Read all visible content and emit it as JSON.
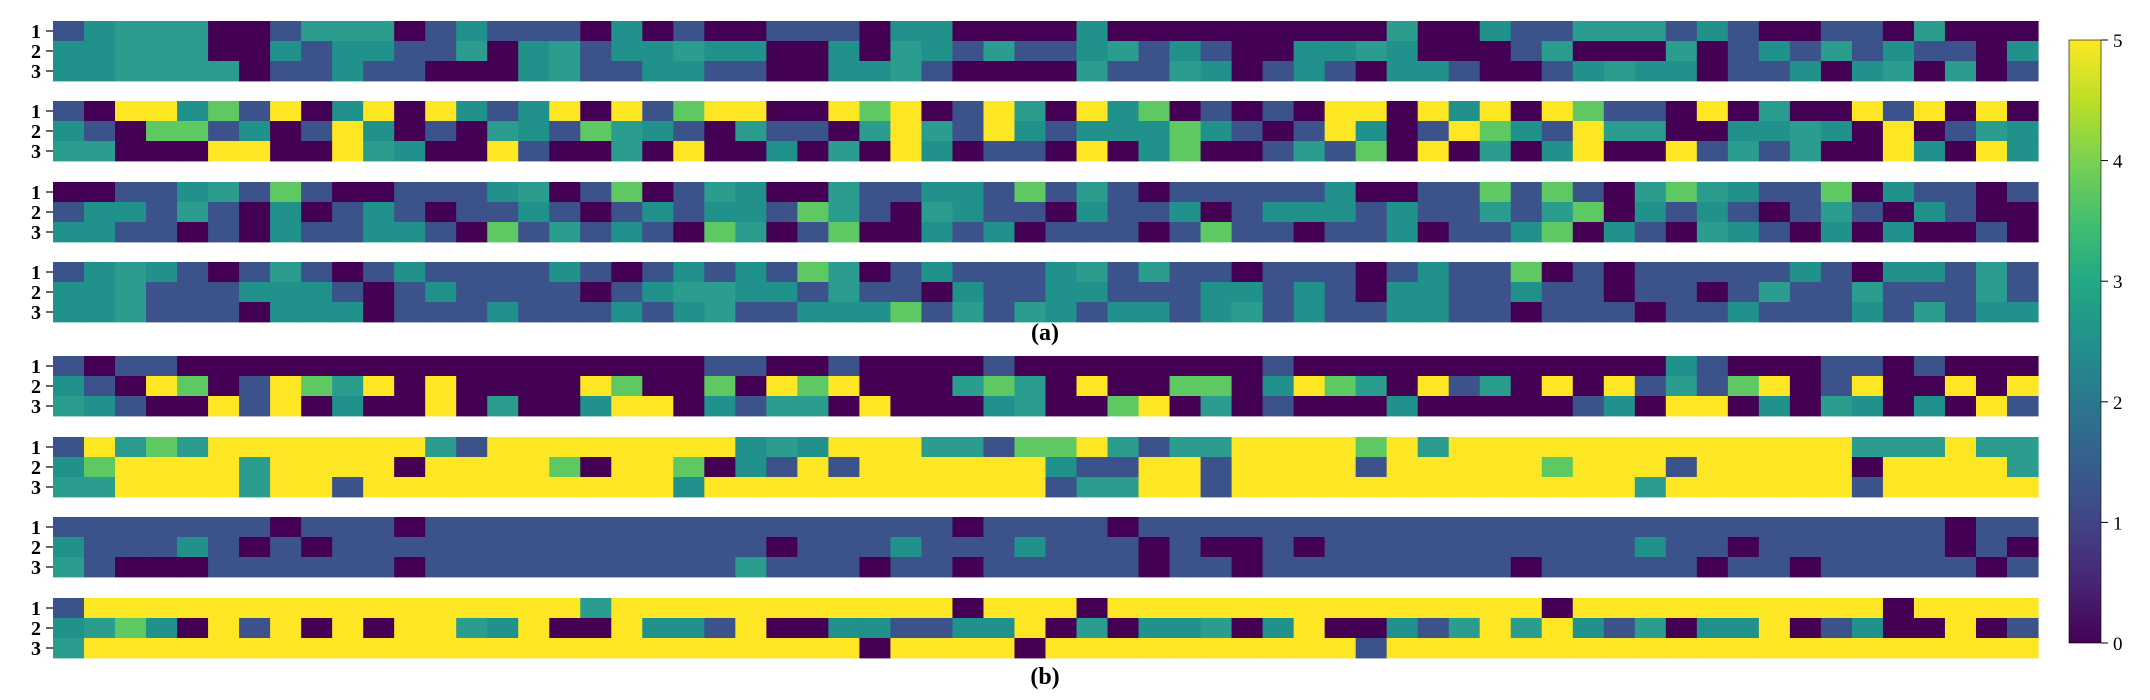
{
  "captions": [
    "(a)",
    "(b)"
  ],
  "colors": {
    "v0": "#440154",
    "v1": "#3b528b",
    "v2": "#21918c",
    "v3": "#2a9d8f",
    "v4": "#5ec962",
    "v5": "#fde725"
  },
  "chart_data": {
    "type": "heatmap",
    "colormap": "viridis",
    "vmin": 0,
    "vmax": 5,
    "colorbar": {
      "ticks": [
        0,
        1,
        2,
        3,
        4,
        5
      ],
      "tick_labels": [
        "0",
        "1",
        "2",
        "3",
        "4",
        "5"
      ],
      "placement": "right"
    },
    "row_tick_labels": [
      "1",
      "2",
      "3"
    ],
    "n_columns": 64,
    "groups": [
      {
        "caption": "(a)",
        "panels": [
          {
            "rows": [
              "1233300133301211102010011102200002000000000300211333121001103000",
              "2233300212211302312232200203213112312100223200013000301213121102",
              "2233330112110002311221100223100003113201210221001232201120230301"
            ]
          },
          {
            "rows": [
              "1055241502505212505145500545015305240101055052505411050300515050",
              "2104412015201032143210311035315212224210152015421533002232050132",
              "3300055005320051003050020305201105024001314050302500513130052052"
            ]
          },
          {
            "rows": [
              "0011231410011123014013200311221413101111120011414103432114021101",
              "1221310201210112101212214310321102112012221211313402121013102100",
              "2211010211221041312104301400212011101411011201124021032102020010"
            ]
          },
          {
            "rows": [
              "1232101310121111210121214301211123131101110121140101111121022131",
              "2231112221012111101233221311021122111221210221121101101311311131",
              "2231110222011121112123112224131321221231211221101110112111213122"
            ]
          }
        ]
      },
      {
        "caption": "(b)",
        "panels": [
          {
            "rows": [
              "1011000000000000000001100100001000000001000000000000210001101000",
              "2105401543505000054004054500034305004402543051305051314501500505",
              "3210051502005030025502133050002300450301000200000120550203202051"
            ]
          },
          {
            "rows": [
              "1534355555553155555555232555331445313355554535555555555555333533",
              "2455553555505555405540215155555521155155551555554555155555055553",
              "3355553551555555555525555555555513355155555555555553555555155555"
            ]
          },
          {
            "rows": [
              "1111111011101111111111111111101111011111111111111111111111111011",
              "2111210101111111111111101112111211101001011111111112110111111010",
              "3100011111101111111111311101101111101101111111101111101101111101"
            ]
          },
          {
            "rows": [
              "1555555555555555535555555555505550555555555555550555555555505555",
              "2342051505055325005221500221122503022302500213535213022501200501",
              "3555555555555555555555555505555055555555551555555555555555555555"
            ]
          }
        ]
      }
    ]
  }
}
